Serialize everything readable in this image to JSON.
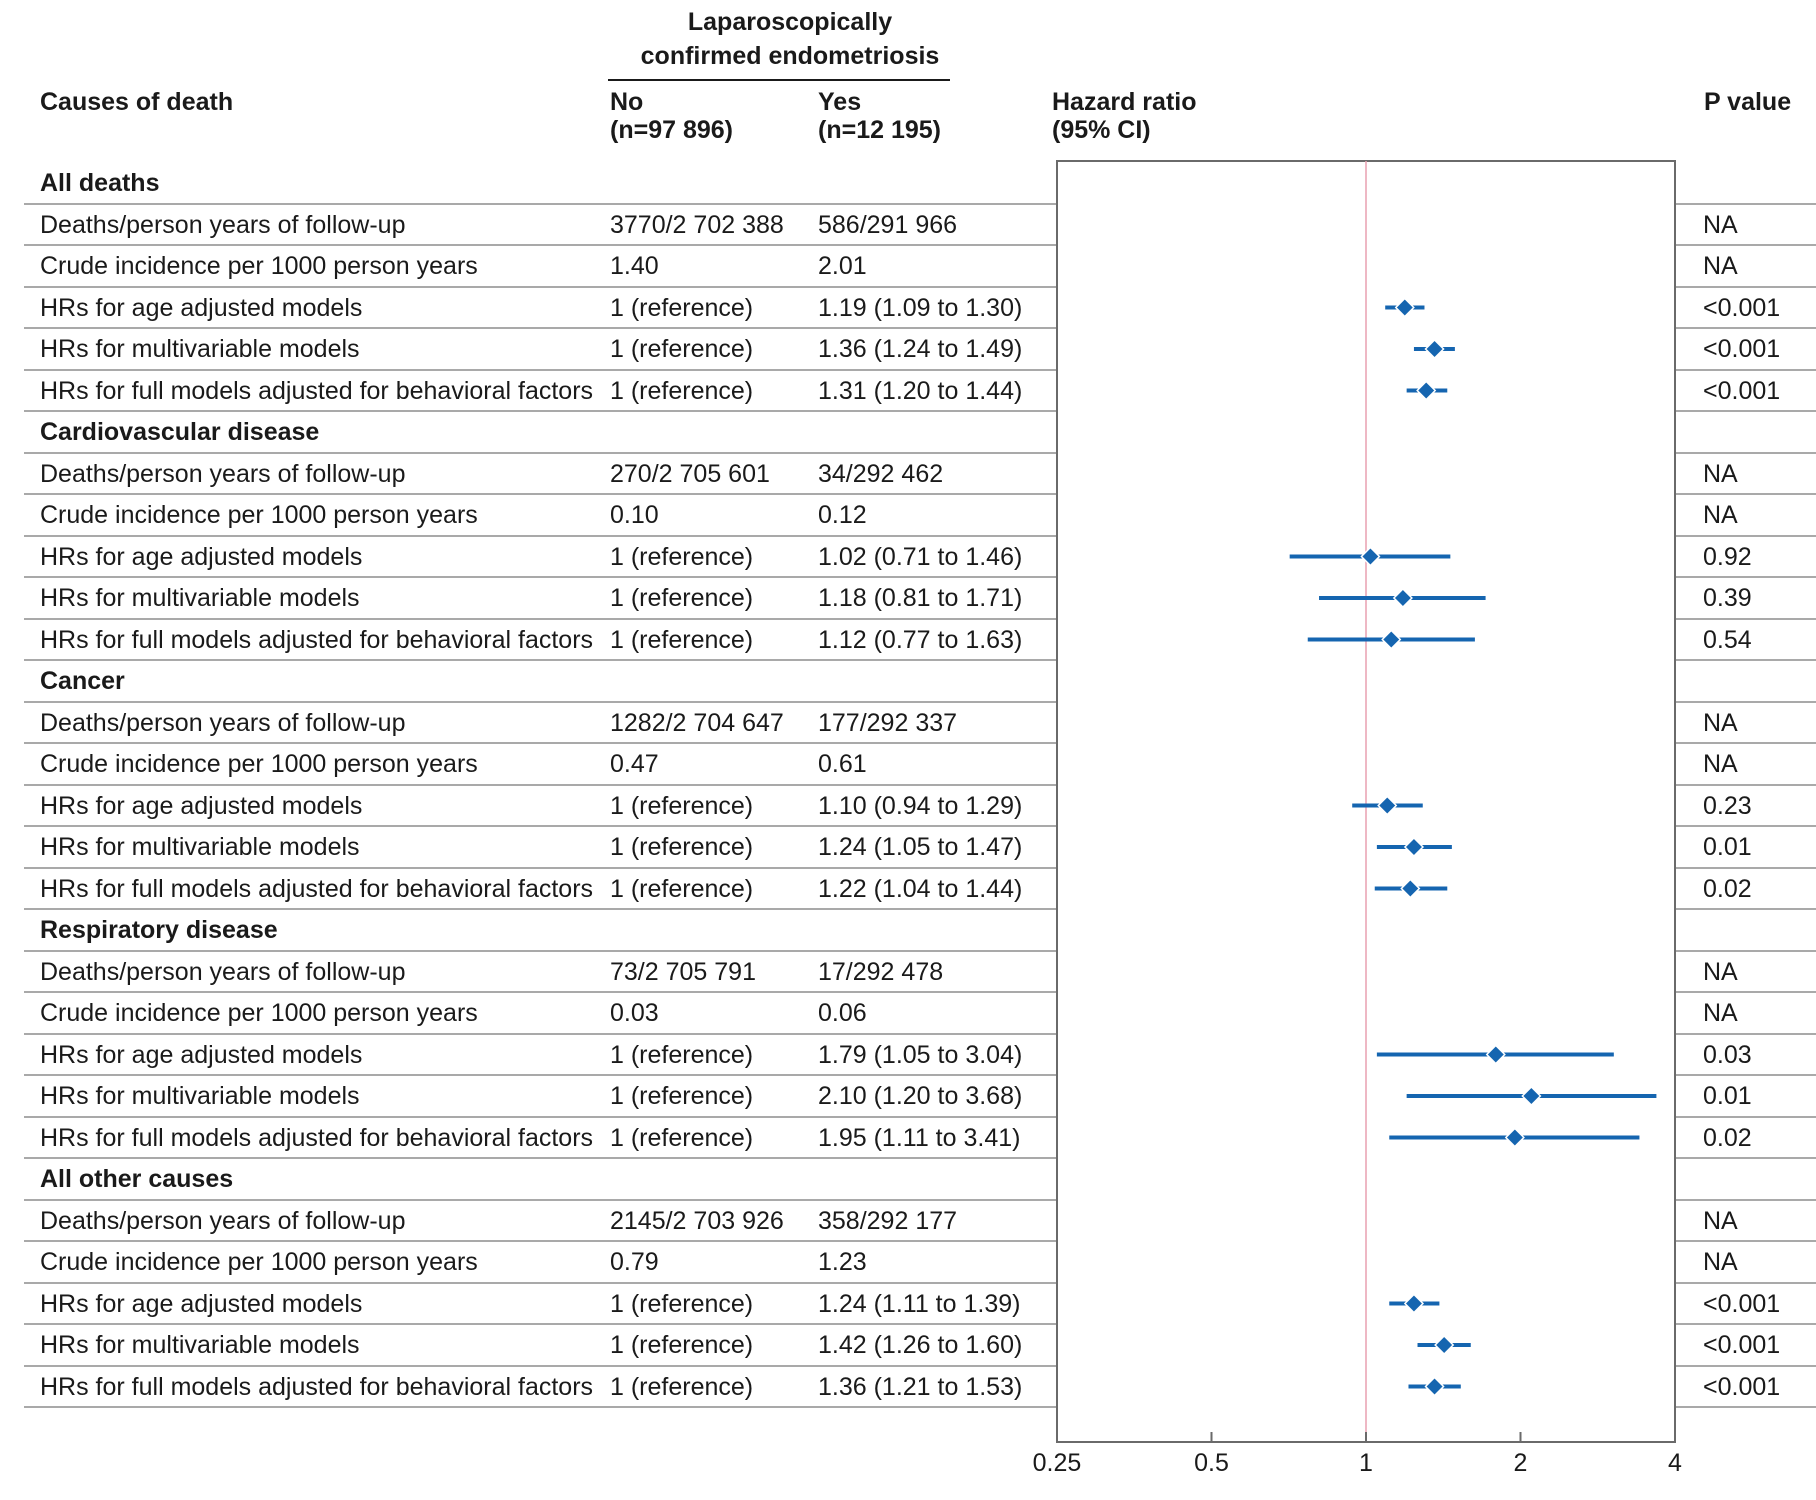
{
  "header": {
    "group_title_line1": "Laparoscopically",
    "group_title_line2": "confirmed endometriosis",
    "col_cause": "Causes of death",
    "col_no_line1": "No",
    "col_no_line2": "(n=97 896)",
    "col_yes_line1": "Yes",
    "col_yes_line2": "(n=12 195)",
    "col_hr_line1": "Hazard ratio",
    "col_hr_line2": "(95% CI)",
    "col_p": "P value"
  },
  "chart_data": {
    "type": "forest",
    "x_scale": "log",
    "xlim": [
      0.25,
      4
    ],
    "reference_line": 1,
    "x_ticks": [
      "0.25",
      "0.5",
      "1",
      "2",
      "4"
    ],
    "x_tick_values": [
      0.25,
      0.5,
      1,
      2,
      4
    ],
    "colors": {
      "marker": "#1565b0",
      "reference": "#e8a0b0",
      "rule": "#a9a9a9"
    },
    "rows": [
      {
        "kind": "section",
        "label": "All deaths"
      },
      {
        "kind": "data",
        "label": "Deaths/person years of follow-up",
        "no": "3770/2 702 388",
        "yes": "586/291 966",
        "p": "NA"
      },
      {
        "kind": "data",
        "label": "Crude incidence per 1000 person years",
        "no": "1.40",
        "yes": "2.01",
        "p": "NA"
      },
      {
        "kind": "data",
        "label": "HRs for age adjusted models",
        "no": "1 (reference)",
        "yes": "1.19 (1.09 to 1.30)",
        "p": "<0.001",
        "hr": 1.19,
        "lo": 1.09,
        "hi": 1.3
      },
      {
        "kind": "data",
        "label": "HRs for multivariable models",
        "no": "1 (reference)",
        "yes": "1.36 (1.24 to 1.49)",
        "p": "<0.001",
        "hr": 1.36,
        "lo": 1.24,
        "hi": 1.49
      },
      {
        "kind": "data",
        "label": "HRs for full models adjusted for behavioral factors",
        "no": "1 (reference)",
        "yes": "1.31 (1.20 to 1.44)",
        "p": "<0.001",
        "hr": 1.31,
        "lo": 1.2,
        "hi": 1.44
      },
      {
        "kind": "section",
        "label": "Cardiovascular disease"
      },
      {
        "kind": "data",
        "label": "Deaths/person years of follow-up",
        "no": "270/2 705 601",
        "yes": "34/292 462",
        "p": "NA"
      },
      {
        "kind": "data",
        "label": "Crude incidence per 1000 person years",
        "no": "0.10",
        "yes": "0.12",
        "p": "NA"
      },
      {
        "kind": "data",
        "label": "HRs for age adjusted models",
        "no": "1 (reference)",
        "yes": "1.02 (0.71 to 1.46)",
        "p": "0.92",
        "hr": 1.02,
        "lo": 0.71,
        "hi": 1.46
      },
      {
        "kind": "data",
        "label": "HRs for multivariable models",
        "no": "1 (reference)",
        "yes": "1.18 (0.81 to 1.71)",
        "p": "0.39",
        "hr": 1.18,
        "lo": 0.81,
        "hi": 1.71
      },
      {
        "kind": "data",
        "label": "HRs for full models adjusted for behavioral factors",
        "no": "1 (reference)",
        "yes": "1.12 (0.77 to 1.63)",
        "p": "0.54",
        "hr": 1.12,
        "lo": 0.77,
        "hi": 1.63
      },
      {
        "kind": "section",
        "label": "Cancer"
      },
      {
        "kind": "data",
        "label": "Deaths/person years of follow-up",
        "no": "1282/2 704 647",
        "yes": "177/292 337",
        "p": "NA"
      },
      {
        "kind": "data",
        "label": "Crude incidence per 1000 person years",
        "no": "0.47",
        "yes": "0.61",
        "p": "NA"
      },
      {
        "kind": "data",
        "label": "HRs for age adjusted models",
        "no": "1 (reference)",
        "yes": "1.10 (0.94 to 1.29)",
        "p": "0.23",
        "hr": 1.1,
        "lo": 0.94,
        "hi": 1.29
      },
      {
        "kind": "data",
        "label": "HRs for multivariable models",
        "no": "1 (reference)",
        "yes": "1.24 (1.05 to 1.47)",
        "p": "0.01",
        "hr": 1.24,
        "lo": 1.05,
        "hi": 1.47
      },
      {
        "kind": "data",
        "label": "HRs for full models adjusted for behavioral factors",
        "no": "1 (reference)",
        "yes": "1.22 (1.04 to 1.44)",
        "p": "0.02",
        "hr": 1.22,
        "lo": 1.04,
        "hi": 1.44
      },
      {
        "kind": "section",
        "label": "Respiratory disease"
      },
      {
        "kind": "data",
        "label": "Deaths/person years of follow-up",
        "no": "73/2 705 791",
        "yes": "17/292 478",
        "p": "NA"
      },
      {
        "kind": "data",
        "label": "Crude incidence per 1000 person years",
        "no": "0.03",
        "yes": "0.06",
        "p": "NA"
      },
      {
        "kind": "data",
        "label": "HRs for age adjusted models",
        "no": "1 (reference)",
        "yes": "1.79 (1.05 to 3.04)",
        "p": "0.03",
        "hr": 1.79,
        "lo": 1.05,
        "hi": 3.04
      },
      {
        "kind": "data",
        "label": "HRs for multivariable models",
        "no": "1 (reference)",
        "yes": "2.10 (1.20 to 3.68)",
        "p": "0.01",
        "hr": 2.1,
        "lo": 1.2,
        "hi": 3.68
      },
      {
        "kind": "data",
        "label": "HRs for full models adjusted for behavioral factors",
        "no": "1 (reference)",
        "yes": "1.95 (1.11 to 3.41)",
        "p": "0.02",
        "hr": 1.95,
        "lo": 1.11,
        "hi": 3.41
      },
      {
        "kind": "section",
        "label": "All other causes"
      },
      {
        "kind": "data",
        "label": "Deaths/person years of follow-up",
        "no": "2145/2 703 926",
        "yes": "358/292 177",
        "p": "NA"
      },
      {
        "kind": "data",
        "label": "Crude incidence per 1000 person years",
        "no": "0.79",
        "yes": "1.23",
        "p": "NA"
      },
      {
        "kind": "data",
        "label": "HRs for age adjusted models",
        "no": "1 (reference)",
        "yes": "1.24 (1.11 to 1.39)",
        "p": "<0.001",
        "hr": 1.24,
        "lo": 1.11,
        "hi": 1.39
      },
      {
        "kind": "data",
        "label": "HRs for multivariable models",
        "no": "1 (reference)",
        "yes": "1.42 (1.26 to 1.60)",
        "p": "<0.001",
        "hr": 1.42,
        "lo": 1.26,
        "hi": 1.6
      },
      {
        "kind": "data",
        "label": "HRs for full models adjusted for behavioral factors",
        "no": "1 (reference)",
        "yes": "1.36 (1.21 to 1.53)",
        "p": "<0.001",
        "hr": 1.36,
        "lo": 1.21,
        "hi": 1.53
      }
    ]
  }
}
